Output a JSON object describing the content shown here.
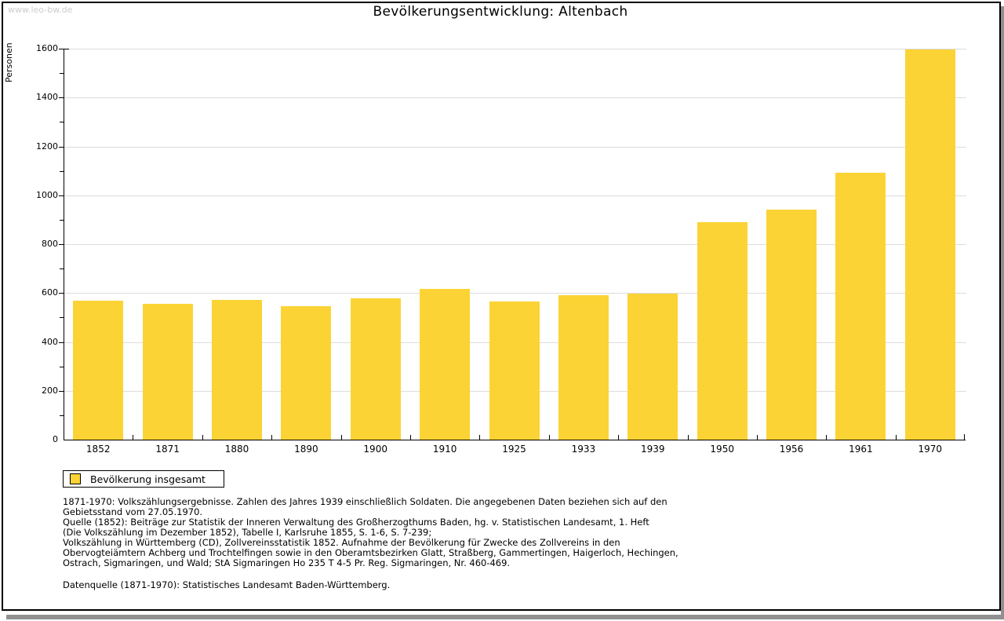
{
  "watermark": "www.leo-bw.de",
  "title": "Bevölkerungsentwicklung: Altenbach",
  "colors": {
    "bar": "#fcd335",
    "grid": "#dcdcdc",
    "axis": "#000000",
    "watermark": "#cccccc",
    "frame_shadow": "#909090"
  },
  "chart_data": {
    "type": "bar",
    "title": "Bevölkerungsentwicklung: Altenbach",
    "ylabel": "Personen",
    "xlabel": "",
    "categories": [
      "1852",
      "1871",
      "1880",
      "1890",
      "1900",
      "1910",
      "1925",
      "1933",
      "1939",
      "1950",
      "1956",
      "1961",
      "1970"
    ],
    "series": [
      {
        "name": "Bevölkerung insgesamt",
        "color": "#fcd335",
        "values": [
          570,
          556,
          573,
          546,
          579,
          617,
          565,
          591,
          598,
          889,
          940,
          1092,
          1597
        ]
      }
    ],
    "ylim": [
      0,
      1600
    ],
    "ytick_step": 200,
    "yminor_step": 100,
    "grid": true,
    "legend_position": "bottom-left"
  },
  "legend": {
    "items": [
      {
        "label": "Bevölkerung insgesamt",
        "swatch_color": "#fcd335"
      }
    ]
  },
  "footnotes": {
    "lines": [
      "1871-1970: Volkszählungsergebnisse. Zahlen des Jahres 1939 einschließlich Soldaten. Die angegebenen Daten beziehen sich auf den",
      "Gebietsstand vom 27.05.1970.",
      "Quelle (1852): Beiträge zur Statistik der Inneren Verwaltung des Großherzogthums Baden, hg. v. Statistischen Landesamt, 1. Heft",
      "(Die Volkszählung im Dezember 1852), Tabelle I, Karlsruhe 1855, S. 1-6, S. 7-239;",
      "Volkszählung in Württemberg (CD), Zollvereinsstatistik 1852. Aufnahme der Bevölkerung für Zwecke des Zollvereins in den",
      "Obervogteiämtern Achberg und Trochtelfingen sowie in den Oberamtsbezirken Glatt, Straßberg, Gammertingen, Haigerloch, Hechingen,",
      "Ostrach, Sigmaringen, und Wald; StA Sigmaringen Ho 235 T 4-5 Pr. Reg. Sigmaringen, Nr. 460-469."
    ],
    "datasource": "Datenquelle (1871-1970): Statistisches Landesamt Baden-Württemberg."
  }
}
